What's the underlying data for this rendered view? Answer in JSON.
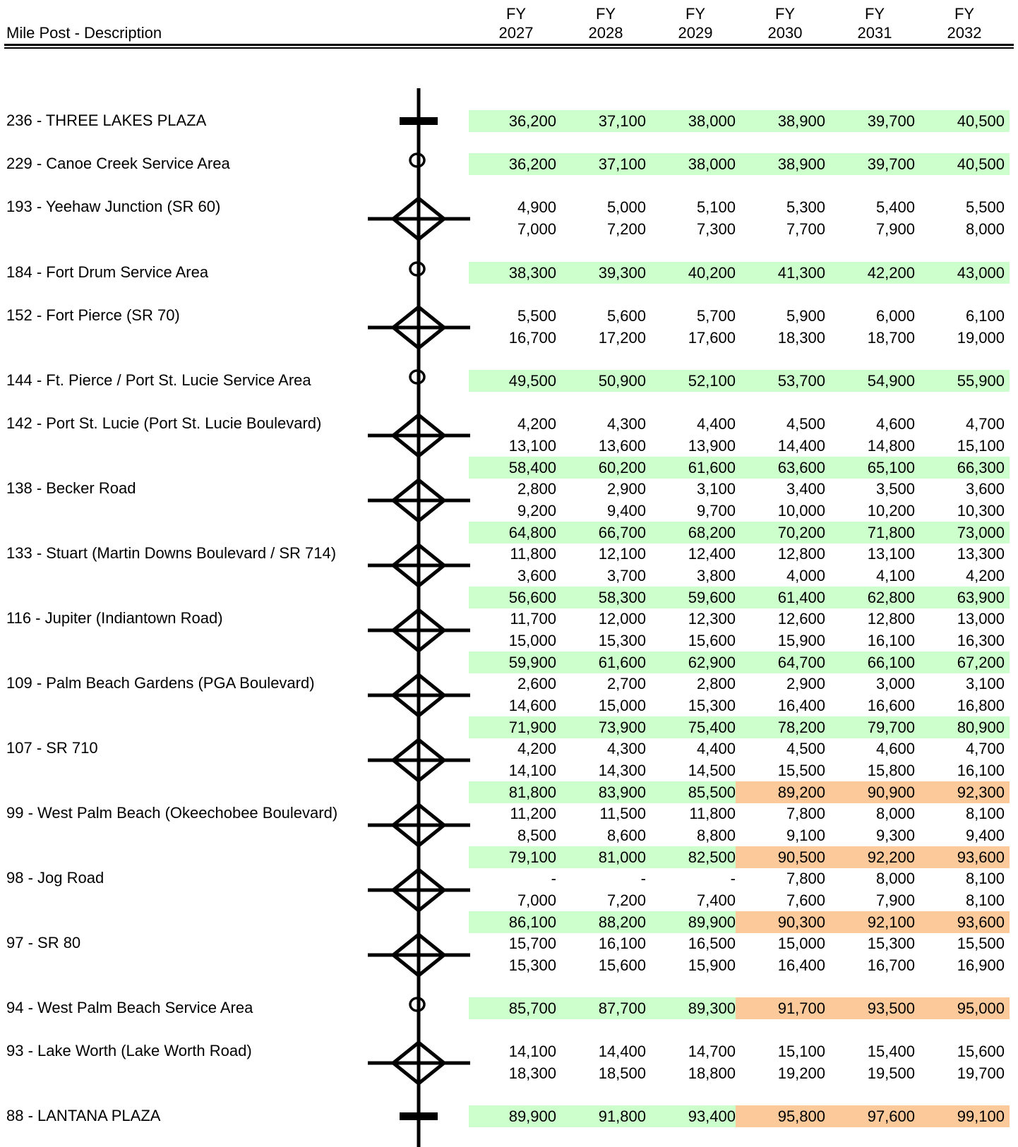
{
  "header": {
    "description_label": "Mile Post - Description",
    "years": [
      {
        "fy": "FY",
        "year": "2027"
      },
      {
        "fy": "FY",
        "year": "2028"
      },
      {
        "fy": "FY",
        "year": "2029"
      },
      {
        "fy": "FY",
        "year": "2030"
      },
      {
        "fy": "FY",
        "year": "2031"
      },
      {
        "fy": "FY",
        "year": "2032"
      }
    ]
  },
  "colors": {
    "green_band": "#ccffcc",
    "orange_band": "#fcc99a",
    "line": "#000000"
  },
  "rows": [
    {
      "label": "236 - THREE LAKES PLAZA",
      "symbol": "plaza-icon",
      "values": [
        {
          "v": [
            "36,200",
            "37,100",
            "38,000",
            "38,900",
            "39,700",
            "40,500"
          ],
          "hl": [
            "g",
            "g",
            "g",
            "g",
            "g",
            "g"
          ]
        }
      ]
    },
    {
      "label": "229 - Canoe Creek Service Area",
      "symbol": "service-area-icon",
      "values": [
        {
          "v": [
            "36,200",
            "37,100",
            "38,000",
            "38,900",
            "39,700",
            "40,500"
          ],
          "hl": [
            "g",
            "g",
            "g",
            "g",
            "g",
            "g"
          ]
        }
      ]
    },
    {
      "label": "193 - Yeehaw Junction (SR 60)",
      "symbol": "interchange-icon",
      "values": [
        {
          "v": [
            "4,900",
            "5,000",
            "5,100",
            "5,300",
            "5,400",
            "5,500"
          ],
          "hl": []
        },
        {
          "v": [
            "7,000",
            "7,200",
            "7,300",
            "7,700",
            "7,900",
            "8,000"
          ],
          "hl": []
        }
      ]
    },
    {
      "label": "184 - Fort Drum Service Area",
      "symbol": "service-area-icon",
      "values": [
        {
          "v": [
            "38,300",
            "39,300",
            "40,200",
            "41,300",
            "42,200",
            "43,000"
          ],
          "hl": [
            "g",
            "g",
            "g",
            "g",
            "g",
            "g"
          ]
        }
      ]
    },
    {
      "label": "152 - Fort Pierce (SR 70)",
      "symbol": "interchange-icon",
      "values": [
        {
          "v": [
            "5,500",
            "5,600",
            "5,700",
            "5,900",
            "6,000",
            "6,100"
          ],
          "hl": []
        },
        {
          "v": [
            "16,700",
            "17,200",
            "17,600",
            "18,300",
            "18,700",
            "19,000"
          ],
          "hl": []
        }
      ]
    },
    {
      "label": "144 - Ft. Pierce / Port St. Lucie Service Area",
      "symbol": "service-area-icon",
      "values": [
        {
          "v": [
            "49,500",
            "50,900",
            "52,100",
            "53,700",
            "54,900",
            "55,900"
          ],
          "hl": [
            "g",
            "g",
            "g",
            "g",
            "g",
            "g"
          ]
        }
      ]
    },
    {
      "label": "142 - Port St. Lucie (Port St. Lucie Boulevard)",
      "symbol": "interchange-icon",
      "values": [
        {
          "v": [
            "4,200",
            "4,300",
            "4,400",
            "4,500",
            "4,600",
            "4,700"
          ],
          "hl": []
        },
        {
          "v": [
            "13,100",
            "13,600",
            "13,900",
            "14,400",
            "14,800",
            "15,100"
          ],
          "hl": []
        },
        {
          "v": [
            "58,400",
            "60,200",
            "61,600",
            "63,600",
            "65,100",
            "66,300"
          ],
          "hl": [
            "g",
            "g",
            "g",
            "g",
            "g",
            "g"
          ]
        }
      ]
    },
    {
      "label": "138 - Becker Road",
      "symbol": "interchange-icon",
      "values": [
        {
          "v": [
            "2,800",
            "2,900",
            "3,100",
            "3,400",
            "3,500",
            "3,600"
          ],
          "hl": []
        },
        {
          "v": [
            "9,200",
            "9,400",
            "9,700",
            "10,000",
            "10,200",
            "10,300"
          ],
          "hl": []
        },
        {
          "v": [
            "64,800",
            "66,700",
            "68,200",
            "70,200",
            "71,800",
            "73,000"
          ],
          "hl": [
            "g",
            "g",
            "g",
            "g",
            "g",
            "g"
          ]
        }
      ]
    },
    {
      "label": "133 - Stuart (Martin Downs Boulevard / SR 714)",
      "symbol": "interchange-icon",
      "values": [
        {
          "v": [
            "11,800",
            "12,100",
            "12,400",
            "12,800",
            "13,100",
            "13,300"
          ],
          "hl": []
        },
        {
          "v": [
            "3,600",
            "3,700",
            "3,800",
            "4,000",
            "4,100",
            "4,200"
          ],
          "hl": []
        },
        {
          "v": [
            "56,600",
            "58,300",
            "59,600",
            "61,400",
            "62,800",
            "63,900"
          ],
          "hl": [
            "g",
            "g",
            "g",
            "g",
            "g",
            "g"
          ]
        }
      ]
    },
    {
      "label": "116 - Jupiter (Indiantown Road)",
      "symbol": "interchange-icon",
      "values": [
        {
          "v": [
            "11,700",
            "12,000",
            "12,300",
            "12,600",
            "12,800",
            "13,000"
          ],
          "hl": []
        },
        {
          "v": [
            "15,000",
            "15,300",
            "15,600",
            "15,900",
            "16,100",
            "16,300"
          ],
          "hl": []
        },
        {
          "v": [
            "59,900",
            "61,600",
            "62,900",
            "64,700",
            "66,100",
            "67,200"
          ],
          "hl": [
            "g",
            "g",
            "g",
            "g",
            "g",
            "g"
          ]
        }
      ]
    },
    {
      "label": "109 - Palm Beach Gardens (PGA Boulevard)",
      "symbol": "interchange-icon",
      "values": [
        {
          "v": [
            "2,600",
            "2,700",
            "2,800",
            "2,900",
            "3,000",
            "3,100"
          ],
          "hl": []
        },
        {
          "v": [
            "14,600",
            "15,000",
            "15,300",
            "16,400",
            "16,600",
            "16,800"
          ],
          "hl": []
        },
        {
          "v": [
            "71,900",
            "73,900",
            "75,400",
            "78,200",
            "79,700",
            "80,900"
          ],
          "hl": [
            "g",
            "g",
            "g",
            "g",
            "g",
            "g"
          ]
        }
      ]
    },
    {
      "label": "107 - SR 710",
      "symbol": "interchange-icon",
      "values": [
        {
          "v": [
            "4,200",
            "4,300",
            "4,400",
            "4,500",
            "4,600",
            "4,700"
          ],
          "hl": []
        },
        {
          "v": [
            "14,100",
            "14,300",
            "14,500",
            "15,500",
            "15,800",
            "16,100"
          ],
          "hl": []
        },
        {
          "v": [
            "81,800",
            "83,900",
            "85,500",
            "89,200",
            "90,900",
            "92,300"
          ],
          "hl": [
            "g",
            "g",
            "g",
            "o",
            "o",
            "o"
          ]
        }
      ]
    },
    {
      "label": "99 - West Palm Beach (Okeechobee Boulevard)",
      "symbol": "interchange-icon",
      "values": [
        {
          "v": [
            "11,200",
            "11,500",
            "11,800",
            "7,800",
            "8,000",
            "8,100"
          ],
          "hl": []
        },
        {
          "v": [
            "8,500",
            "8,600",
            "8,800",
            "9,100",
            "9,300",
            "9,400"
          ],
          "hl": []
        },
        {
          "v": [
            "79,100",
            "81,000",
            "82,500",
            "90,500",
            "92,200",
            "93,600"
          ],
          "hl": [
            "g",
            "g",
            "g",
            "o",
            "o",
            "o"
          ]
        }
      ]
    },
    {
      "label": "98 - Jog Road",
      "symbol": "interchange-icon",
      "values": [
        {
          "v": [
            "-",
            "-",
            "-",
            "7,800",
            "8,000",
            "8,100"
          ],
          "hl": []
        },
        {
          "v": [
            "7,000",
            "7,200",
            "7,400",
            "7,600",
            "7,900",
            "8,100"
          ],
          "hl": []
        },
        {
          "v": [
            "86,100",
            "88,200",
            "89,900",
            "90,300",
            "92,100",
            "93,600"
          ],
          "hl": [
            "g",
            "g",
            "g",
            "o",
            "o",
            "o"
          ]
        }
      ]
    },
    {
      "label": "97 - SR 80",
      "symbol": "interchange-icon",
      "values": [
        {
          "v": [
            "15,700",
            "16,100",
            "16,500",
            "15,000",
            "15,300",
            "15,500"
          ],
          "hl": []
        },
        {
          "v": [
            "15,300",
            "15,600",
            "15,900",
            "16,400",
            "16,700",
            "16,900"
          ],
          "hl": []
        }
      ]
    },
    {
      "label": "94 - West Palm Beach Service Area",
      "symbol": "service-area-icon",
      "values": [
        {
          "v": [
            "85,700",
            "87,700",
            "89,300",
            "91,700",
            "93,500",
            "95,000"
          ],
          "hl": [
            "g",
            "g",
            "g",
            "o",
            "o",
            "o"
          ]
        }
      ]
    },
    {
      "label": "93 - Lake Worth (Lake Worth Road)",
      "symbol": "interchange-icon",
      "values": [
        {
          "v": [
            "14,100",
            "14,400",
            "14,700",
            "15,100",
            "15,400",
            "15,600"
          ],
          "hl": []
        },
        {
          "v": [
            "18,300",
            "18,500",
            "18,800",
            "19,200",
            "19,500",
            "19,700"
          ],
          "hl": []
        }
      ]
    },
    {
      "label": "88 - LANTANA PLAZA",
      "symbol": "plaza-icon",
      "values": [
        {
          "v": [
            "89,900",
            "91,800",
            "93,400",
            "95,800",
            "97,600",
            "99,100"
          ],
          "hl": [
            "g",
            "g",
            "g",
            "o",
            "o",
            "o"
          ]
        }
      ]
    }
  ]
}
